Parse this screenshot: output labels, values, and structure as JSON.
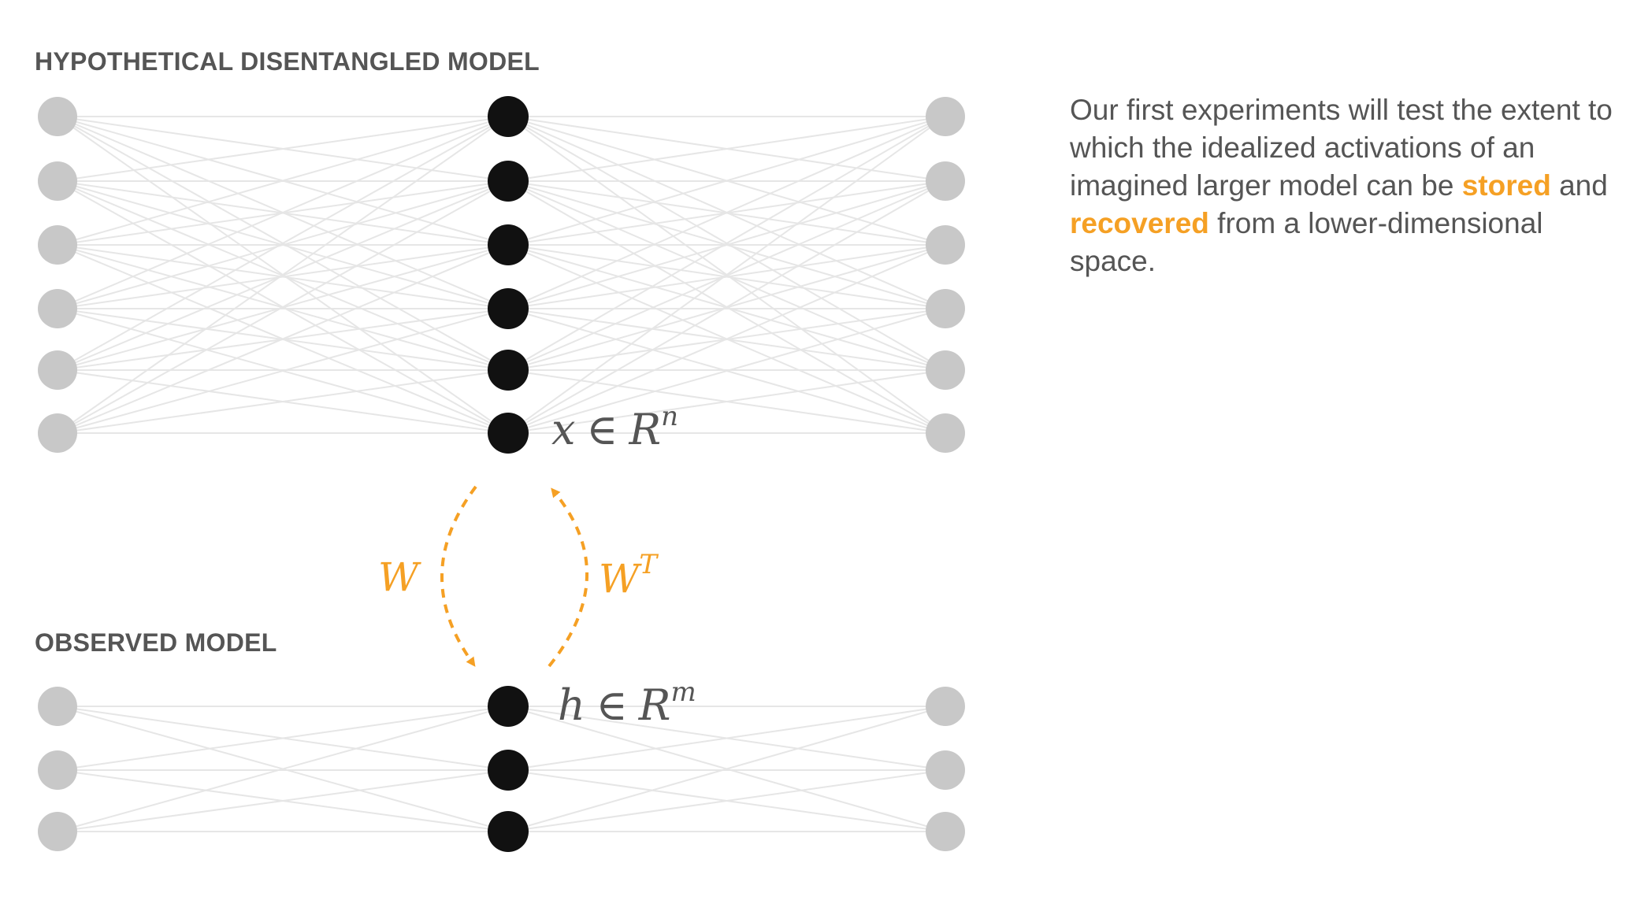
{
  "labels": {
    "top_section": "HYPOTHETICAL DISENTANGLED MODEL",
    "bottom_section": "OBSERVED MODEL"
  },
  "math": {
    "x_var": "x",
    "x_set": "R",
    "x_exp": "n",
    "h_var": "h",
    "h_set": "R",
    "h_exp": "m",
    "element_of": "∈",
    "W": "W",
    "WT": "W",
    "WT_exp": "T"
  },
  "description": {
    "part1": "Our first experiments will test the extent to which the idealized activations of an imagined larger model can be ",
    "stored": "stored",
    "and": " and ",
    "recovered": "recovered",
    "part2": " from a lower-dimensional space."
  },
  "colors": {
    "node_outer": "#c8c8c8",
    "node_hidden": "#111111",
    "edge": "#e6e6e6",
    "accent": "#f5a024",
    "text": "#555555"
  },
  "network": {
    "top": {
      "outer_nodes": 6,
      "hidden_nodes": 6
    },
    "bottom": {
      "outer_nodes": 3,
      "hidden_nodes": 3
    }
  }
}
